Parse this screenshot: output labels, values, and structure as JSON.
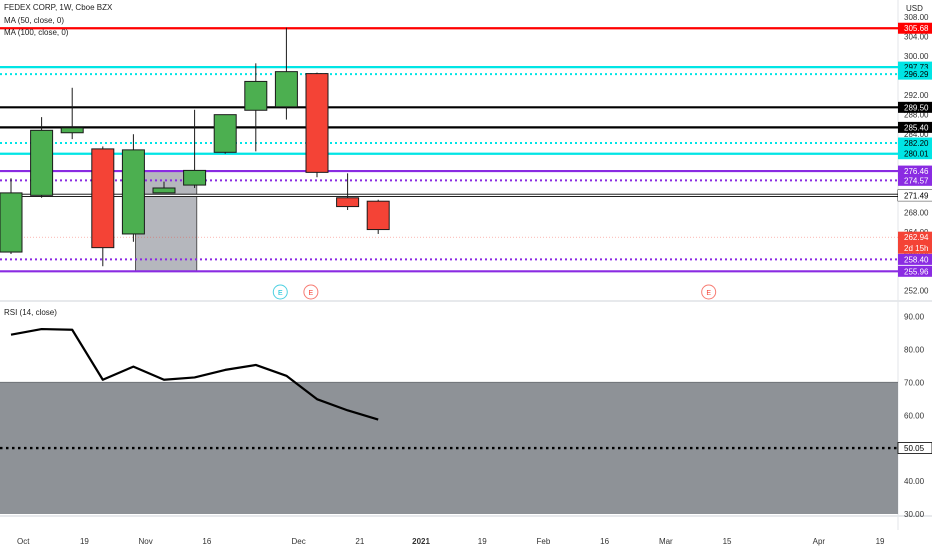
{
  "header": {
    "title": "FEDEX CORP, 1W, Cboe BZX",
    "ma50": "MA (50, close, 0)",
    "ma100": "MA (100, close, 0)",
    "currency": "USD"
  },
  "rsi_panel": {
    "label": "RSI (14, close)"
  },
  "colors": {
    "up": "#4caf50",
    "down": "#f44336",
    "resistance": "#ff0000",
    "cyan": "#00e5e5",
    "black": "#000000",
    "purple": "#8a2be2",
    "white_line": "#ffffff",
    "rsi_band": "#8e9297",
    "rsi_line": "#000000"
  },
  "chart_data": [
    {
      "type": "candlestick",
      "title": "FEDEX CORP, 1W, Cboe BZX",
      "ylim": [
        250.5,
        309
      ],
      "y_ticks": [
        252,
        256,
        260,
        264,
        268,
        272,
        276,
        280,
        284,
        288,
        292,
        296,
        300,
        304,
        308
      ],
      "y_tick_labels": [
        "252.00",
        "256.00",
        "260.00",
        "264.00",
        "268.00",
        "272.00",
        "276.00",
        "280.00",
        "284.00",
        "288.00",
        "292.00",
        "296.00",
        "300.00",
        "304.00",
        "308.00"
      ],
      "x_ticks": [
        {
          "label": "Oct",
          "x": 0.4
        },
        {
          "label": "19",
          "x": 2.4
        },
        {
          "label": "Nov",
          "x": 4.4
        },
        {
          "label": "16",
          "x": 6.4
        },
        {
          "label": "Dec",
          "x": 9.4
        },
        {
          "label": "21",
          "x": 11.4
        },
        {
          "label": "2021",
          "x": 13.4,
          "bold": true
        },
        {
          "label": "19",
          "x": 15.4
        },
        {
          "label": "Feb",
          "x": 17.4
        },
        {
          "label": "16",
          "x": 19.4
        },
        {
          "label": "Mar",
          "x": 21.4
        },
        {
          "label": "15",
          "x": 23.4
        },
        {
          "label": "Apr",
          "x": 26.4
        },
        {
          "label": "19",
          "x": 28.4
        }
      ],
      "candles": [
        {
          "x": 0,
          "open": 259.9,
          "high": 275.0,
          "low": 259.5,
          "close": 272.0
        },
        {
          "x": 1,
          "open": 271.5,
          "high": 287.5,
          "low": 271.0,
          "close": 284.8
        },
        {
          "x": 2,
          "open": 284.3,
          "high": 293.5,
          "low": 283.0,
          "close": 285.3
        },
        {
          "x": 3,
          "open": 281.0,
          "high": 281.5,
          "low": 257.0,
          "close": 260.8
        },
        {
          "x": 4,
          "open": 263.6,
          "high": 284.0,
          "low": 262.0,
          "close": 280.8
        },
        {
          "x": 5,
          "open": 272.0,
          "high": 274.3,
          "low": 272.0,
          "close": 273.0
        },
        {
          "x": 6,
          "open": 273.6,
          "high": 289.0,
          "low": 273.0,
          "close": 276.6
        },
        {
          "x": 7,
          "open": 280.3,
          "high": 288.0,
          "low": 280.0,
          "close": 288.0
        },
        {
          "x": 8,
          "open": 288.9,
          "high": 298.5,
          "low": 280.5,
          "close": 294.8
        },
        {
          "x": 9,
          "open": 289.6,
          "high": 305.8,
          "low": 287.0,
          "close": 296.8
        },
        {
          "x": 10,
          "open": 296.4,
          "high": 296.6,
          "low": 275.2,
          "close": 276.2
        },
        {
          "x": 11,
          "open": 271.0,
          "high": 276.0,
          "low": 268.5,
          "close": 269.2
        },
        {
          "x": 12,
          "open": 270.3,
          "high": 270.6,
          "low": 263.6,
          "close": 264.5
        }
      ],
      "horizontal_levels": [
        {
          "value": 305.68,
          "label": "305.68",
          "color": "#ff0000",
          "style": "solid"
        },
        {
          "value": 297.73,
          "label": "297.73",
          "color": "#00e5e5",
          "style": "solid"
        },
        {
          "value": 296.29,
          "label": "296.29",
          "color": "#00e5e5",
          "style": "dotted"
        },
        {
          "value": 289.5,
          "label": "289.50",
          "color": "#000000",
          "style": "solid"
        },
        {
          "value": 285.4,
          "label": "285.40",
          "color": "#000000",
          "style": "solid"
        },
        {
          "value": 282.2,
          "label": "282.20",
          "color": "#00e5e5",
          "style": "dotted"
        },
        {
          "value": 280.01,
          "label": "280.01",
          "color": "#00e5e5",
          "style": "solid"
        },
        {
          "value": 276.46,
          "label": "276.46",
          "color": "#8a2be2",
          "style": "solid"
        },
        {
          "value": 274.57,
          "label": "274.57",
          "color": "#8a2be2",
          "style": "dotted"
        },
        {
          "value": 271.49,
          "label": "271.49",
          "color": "#000000",
          "style": "white"
        },
        {
          "value": 258.4,
          "label": "258.40",
          "color": "#8a2be2",
          "style": "dotted"
        },
        {
          "value": 255.96,
          "label": "255.96",
          "color": "#8a2be2",
          "style": "solid"
        }
      ],
      "last_price": {
        "value": 262.94,
        "label": "262.94",
        "countdown": "2d 15h"
      },
      "highlight_box": {
        "x_start": 4.2,
        "x_end": 6.2,
        "y_low": 255.96,
        "y_high": 276.46
      },
      "earnings_markers": [
        {
          "x": 8.8,
          "letter": "E",
          "color": "#00bcd4"
        },
        {
          "x": 9.8,
          "letter": "E",
          "color": "#f44336"
        },
        {
          "x": 22.8,
          "letter": "E",
          "color": "#f44336"
        }
      ]
    },
    {
      "type": "line",
      "title": "RSI (14, close)",
      "ylim": [
        30,
        92
      ],
      "y_ticks": [
        30,
        40,
        50,
        60,
        70,
        80,
        90
      ],
      "y_tick_labels": [
        "30.00",
        "40.00",
        "50.00",
        "60.00",
        "70.00",
        "80.00",
        "90.00"
      ],
      "band": [
        30,
        70
      ],
      "reference_level": {
        "value": 50.05,
        "label": "50.05"
      },
      "series": [
        {
          "x": [
            0,
            1,
            2,
            3,
            4,
            5,
            6,
            7,
            8,
            9,
            10,
            11,
            12
          ],
          "values": [
            84.5,
            86.2,
            86.0,
            70.8,
            74.8,
            70.8,
            71.5,
            73.8,
            75.3,
            72.0,
            64.9,
            61.5,
            58.7
          ]
        }
      ]
    }
  ]
}
